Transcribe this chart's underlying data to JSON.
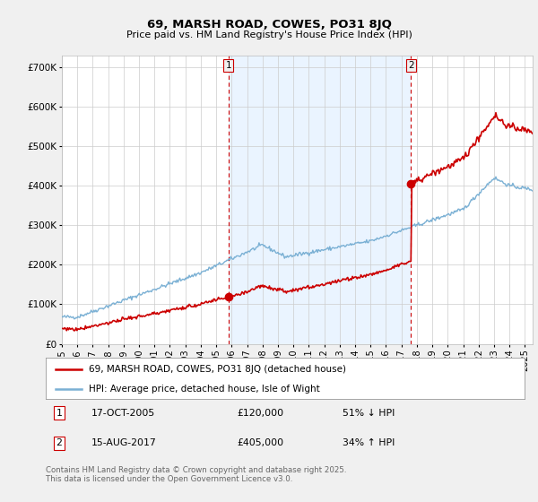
{
  "title": "69, MARSH ROAD, COWES, PO31 8JQ",
  "subtitle": "Price paid vs. HM Land Registry's House Price Index (HPI)",
  "ylabel_ticks": [
    "£0",
    "£100K",
    "£200K",
    "£300K",
    "£400K",
    "£500K",
    "£600K",
    "£700K"
  ],
  "ytick_values": [
    0,
    100000,
    200000,
    300000,
    400000,
    500000,
    600000,
    700000
  ],
  "ylim": [
    0,
    730000
  ],
  "xlim_start": 1995.0,
  "xlim_end": 2025.5,
  "sale1_date": 2005.79,
  "sale1_price": 120000,
  "sale2_date": 2017.62,
  "sale2_price": 405000,
  "property_color": "#cc0000",
  "hpi_color": "#7ab0d4",
  "shade_color": "#ddeeff",
  "vline_color": "#cc0000",
  "grid_color": "#cccccc",
  "background_color": "#f0f0f0",
  "plot_bg_color": "#ffffff",
  "legend1_text": "69, MARSH ROAD, COWES, PO31 8JQ (detached house)",
  "legend2_text": "HPI: Average price, detached house, Isle of Wight",
  "footer": "Contains HM Land Registry data © Crown copyright and database right 2025.\nThis data is licensed under the Open Government Licence v3.0.",
  "font_family": "DejaVu Sans",
  "figwidth": 6.0,
  "figheight": 5.6,
  "dpi": 100
}
